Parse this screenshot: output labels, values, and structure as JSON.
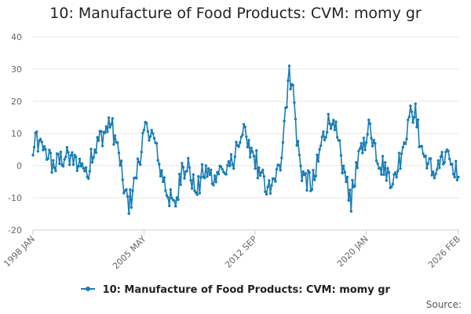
{
  "chart_data": {
    "type": "line",
    "title": "10: Manufacture of Food Products: CVM: momy gr",
    "xlabel": "",
    "ylabel": "",
    "ylim": [
      -20,
      40
    ],
    "yticks": [
      -20,
      -10,
      0,
      10,
      20,
      30,
      40
    ],
    "grid": true,
    "xticks": [
      {
        "label": "1998 JAN",
        "month_index": 0
      },
      {
        "label": "2005 MAY",
        "month_index": 88
      },
      {
        "label": "2012 SEP",
        "month_index": 176
      },
      {
        "label": "2020 JAN",
        "month_index": 264
      },
      {
        "label": "2026 FEB",
        "month_index": 337
      }
    ],
    "start": "1998 JAN",
    "end": "2026 FEB",
    "series": [
      {
        "name": "10: Manufacture of Food Products: CVM: momy gr",
        "color": "#1a7db5",
        "anchors": [
          [
            0,
            3
          ],
          [
            3,
            8.5
          ],
          [
            5,
            5
          ],
          [
            8,
            6
          ],
          [
            12,
            3
          ],
          [
            16,
            0
          ],
          [
            20,
            1
          ],
          [
            24,
            3
          ],
          [
            30,
            2
          ],
          [
            36,
            1
          ],
          [
            40,
            0
          ],
          [
            43,
            -3
          ],
          [
            46,
            4
          ],
          [
            50,
            6
          ],
          [
            54,
            9
          ],
          [
            58,
            11
          ],
          [
            61,
            14
          ],
          [
            64,
            10
          ],
          [
            67,
            5
          ],
          [
            70,
            -2
          ],
          [
            73,
            -9
          ],
          [
            76,
            -12
          ],
          [
            80,
            -6
          ],
          [
            84,
            2
          ],
          [
            88,
            9
          ],
          [
            91,
            12
          ],
          [
            94,
            10
          ],
          [
            97,
            6
          ],
          [
            100,
            0
          ],
          [
            104,
            -5
          ],
          [
            108,
            -10
          ],
          [
            112,
            -13
          ],
          [
            115,
            -8
          ],
          [
            118,
            0
          ],
          [
            122,
            1
          ],
          [
            126,
            -5
          ],
          [
            130,
            -8
          ],
          [
            134,
            -3
          ],
          [
            138,
            -2
          ],
          [
            142,
            -4
          ],
          [
            146,
            -2
          ],
          [
            150,
            -1
          ],
          [
            154,
            -3
          ],
          [
            158,
            2
          ],
          [
            162,
            5
          ],
          [
            166,
            11
          ],
          [
            169,
            7
          ],
          [
            172,
            4
          ],
          [
            176,
            2
          ],
          [
            180,
            -3
          ],
          [
            184,
            -6
          ],
          [
            188,
            -7
          ],
          [
            192,
            -5
          ],
          [
            196,
            1
          ],
          [
            199,
            14
          ],
          [
            201,
            22
          ],
          [
            203,
            29
          ],
          [
            205,
            27
          ],
          [
            207,
            19
          ],
          [
            209,
            9
          ],
          [
            212,
            -1
          ],
          [
            216,
            -4
          ],
          [
            220,
            -6
          ],
          [
            224,
            -3
          ],
          [
            228,
            6
          ],
          [
            232,
            12
          ],
          [
            236,
            15
          ],
          [
            240,
            9
          ],
          [
            244,
            2
          ],
          [
            248,
            -5
          ],
          [
            252,
            -10
          ],
          [
            256,
            -2
          ],
          [
            260,
            5
          ],
          [
            264,
            9
          ],
          [
            267,
            13
          ],
          [
            270,
            7
          ],
          [
            274,
            2
          ],
          [
            278,
            0
          ],
          [
            282,
            -3
          ],
          [
            286,
            -5
          ],
          [
            290,
            2
          ],
          [
            294,
            8
          ],
          [
            298,
            15
          ],
          [
            302,
            17
          ],
          [
            305,
            11
          ],
          [
            308,
            5
          ],
          [
            312,
            1
          ],
          [
            316,
            -2
          ],
          [
            320,
            -1
          ],
          [
            324,
            1
          ],
          [
            328,
            2
          ],
          [
            332,
            -1
          ],
          [
            337,
            -1
          ]
        ],
        "fluctuation": 2.2
      }
    ],
    "legend": {
      "label": "10: Manufacture of Food Products: CVM: momy gr",
      "position": "bottom-center"
    },
    "source": "Source:"
  }
}
